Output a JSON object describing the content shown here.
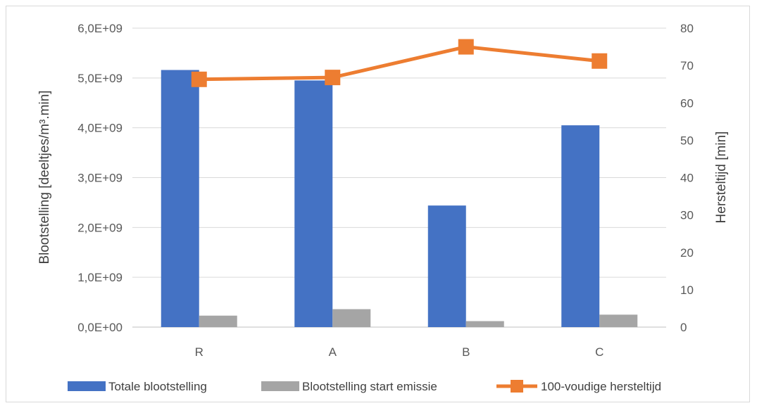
{
  "chart_data": {
    "type": "bar",
    "categories": [
      "R",
      "A",
      "B",
      "C"
    ],
    "series": [
      {
        "name": "Totale blootstelling",
        "type": "bar",
        "axis": "left",
        "color": "#4472C4",
        "values": [
          5160000000.0,
          4950000000.0,
          2440000000.0,
          4050000000.0
        ]
      },
      {
        "name": "Blootstelling start emissie",
        "type": "bar",
        "axis": "left",
        "color": "#A5A5A5",
        "values": [
          230000000.0,
          360000000.0,
          120000000.0,
          250000000.0
        ]
      },
      {
        "name": "100-voudige hersteltijd",
        "type": "line",
        "axis": "right",
        "color": "#ED7D31",
        "marker": "square",
        "values": [
          66.3,
          66.8,
          75.0,
          71.2
        ]
      }
    ],
    "y_left": {
      "label": "Blootstelling [deeltjes/m³.min]",
      "range": [
        0,
        6000000000.0
      ],
      "ticks": [
        0,
        1000000000.0,
        2000000000.0,
        3000000000.0,
        4000000000.0,
        5000000000.0,
        6000000000.0
      ],
      "tick_labels": [
        "0,0E+00",
        "1,0E+09",
        "2,0E+09",
        "3,0E+09",
        "4,0E+09",
        "5,0E+09",
        "6,0E+09"
      ]
    },
    "y_right": {
      "label": "Hersteltijd [min]",
      "range": [
        0,
        80
      ],
      "ticks": [
        0,
        10,
        20,
        30,
        40,
        50,
        60,
        70,
        80
      ],
      "tick_labels": [
        "0",
        "10",
        "20",
        "30",
        "40",
        "50",
        "60",
        "70",
        "80"
      ]
    },
    "grid": true,
    "legend_position": "bottom"
  }
}
